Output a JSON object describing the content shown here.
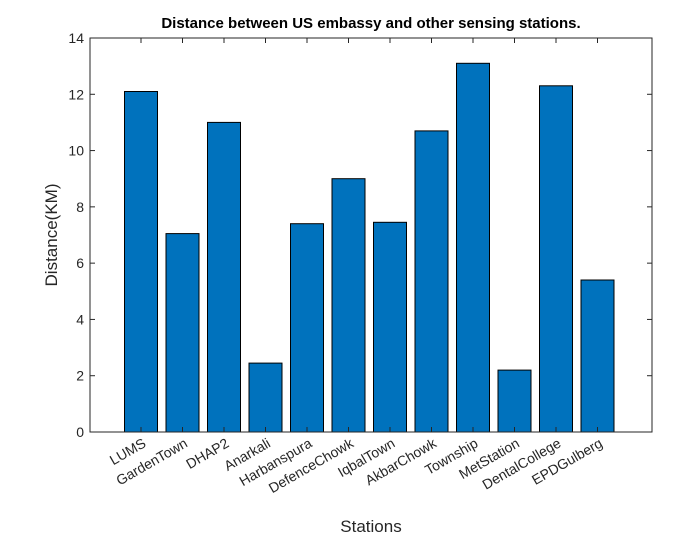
{
  "chart_data": {
    "type": "bar",
    "title": "Distance between US embassy and other sensing stations.",
    "xlabel": "Stations",
    "ylabel": "Distance(KM)",
    "ylim": [
      0,
      14
    ],
    "yticks": [
      0,
      2,
      4,
      6,
      8,
      10,
      12,
      14
    ],
    "categories": [
      "LUMS",
      "GardenTown",
      "DHAP2",
      "Anarkali",
      "Harbanspura",
      "DefenceChowk",
      "IqbalTown",
      "AkbarChowk",
      "Township",
      "MetStation",
      "DentalCollege",
      "EPDGulberg"
    ],
    "values": [
      12.1,
      7.05,
      11.0,
      2.45,
      7.4,
      9.0,
      7.45,
      10.7,
      13.1,
      2.2,
      12.3,
      5.4
    ],
    "bar_color": "#0072BD",
    "bar_edge_color": "#000000",
    "grid": false,
    "legend": "none"
  }
}
